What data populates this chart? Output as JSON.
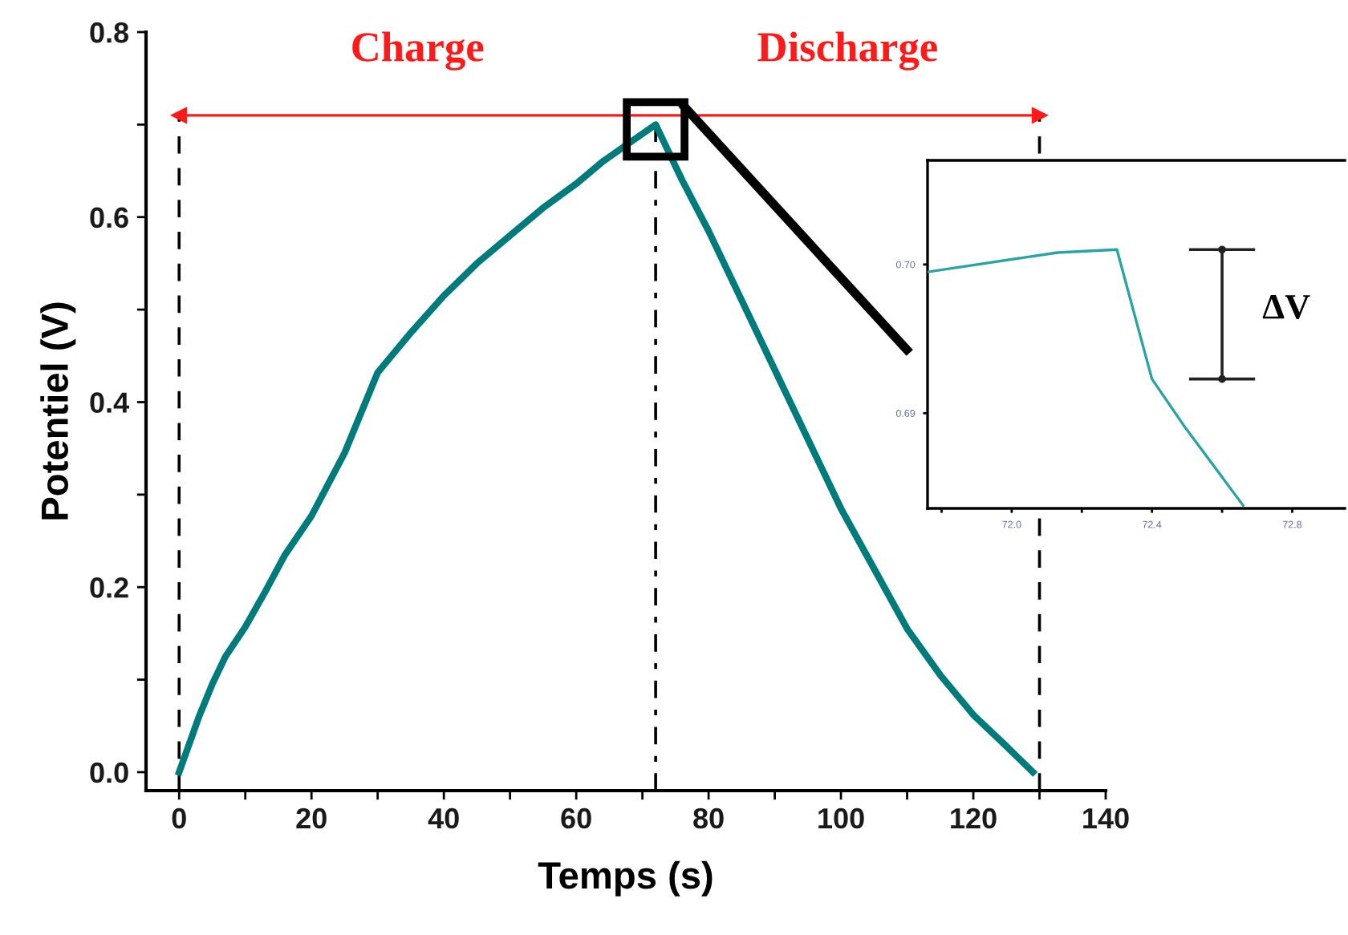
{
  "chart_data": [
    {
      "type": "line",
      "xlabel": "Temps (s)",
      "ylabel": "Potentiel (V)",
      "xlim": [
        -5,
        140
      ],
      "ylim": [
        -0.02,
        0.8
      ],
      "xticks": [
        0,
        {
          "value": 10,
          "label": null
        },
        20,
        {
          "value": 30,
          "label": null
        },
        40,
        {
          "value": 50,
          "label": null
        },
        60,
        {
          "value": 70,
          "label": null
        },
        80,
        {
          "value": 90,
          "label": null
        },
        100,
        {
          "value": 110,
          "label": null
        },
        120,
        {
          "value": 130,
          "label": null
        },
        140
      ],
      "yticks": [
        {
          "value": 0,
          "label": "0.0"
        },
        {
          "value": 0.1,
          "label": null
        },
        0.2,
        {
          "value": 0.3,
          "label": null
        },
        0.4,
        {
          "value": 0.5,
          "label": null
        },
        0.6,
        {
          "value": 0.7,
          "label": null
        },
        0.8
      ],
      "grid": false,
      "legend": false,
      "series": [
        {
          "color": "#007b7b",
          "x": [
            0,
            1,
            2,
            3,
            5,
            7,
            10,
            13,
            16,
            20,
            25,
            30,
            35,
            40,
            45,
            50,
            55,
            60,
            64,
            68,
            70,
            72,
            73,
            76,
            80,
            85,
            90,
            95,
            100,
            105,
            110,
            115,
            120,
            125,
            129
          ],
          "values": [
            0,
            0.02,
            0.04,
            0.06,
            0.095,
            0.125,
            0.157,
            0.195,
            0.235,
            0.277,
            0.345,
            0.432,
            0.475,
            0.515,
            0.55,
            0.58,
            0.61,
            0.636,
            0.66,
            0.68,
            0.69,
            0.7,
            0.685,
            0.64,
            0.585,
            0.51,
            0.435,
            0.36,
            0.285,
            0.22,
            0.155,
            0.105,
            0.062,
            0.028,
            0
          ]
        }
      ],
      "ref_lines": [
        {
          "axis": "x",
          "value": 0,
          "color": "#000000",
          "line_style": "dashed"
        },
        {
          "axis": "x",
          "value": 72,
          "color": "#000000",
          "line_style": "dashdot"
        },
        {
          "axis": "x",
          "value": 130,
          "color": "#000000",
          "line_style": "dashed"
        },
        {
          "axis": "y",
          "value": 0.71,
          "color": "#ff1a1a",
          "line_style": "solid"
        }
      ],
      "annotations": [
        "Charge",
        "Discharge"
      ]
    },
    {
      "type": "line",
      "xlim": [
        71.76,
        72.95
      ],
      "ylim": [
        0.6836,
        0.707
      ],
      "xticks": [
        {
          "value": 71.8,
          "label": null
        },
        {
          "value": 72.0,
          "label": "72.0"
        },
        {
          "value": 72.2,
          "label": null
        },
        {
          "value": 72.4,
          "label": "72.4"
        },
        {
          "value": 72.6,
          "label": null
        },
        {
          "value": 72.8,
          "label": "72.8"
        }
      ],
      "yticks": [
        {
          "value": 0.69,
          "label": "0.69"
        },
        {
          "value": 0.7,
          "label": "0.70"
        }
      ],
      "grid": false,
      "legend": false,
      "series": [
        {
          "color": "#2aa3a3",
          "x": [
            71.76,
            72.13,
            72.3,
            72.4,
            72.49,
            72.66
          ],
          "values": [
            0.6995,
            0.7008,
            0.701,
            0.6923,
            0.6892,
            0.6838
          ]
        }
      ],
      "annotations": [
        "ΔV"
      ]
    }
  ]
}
